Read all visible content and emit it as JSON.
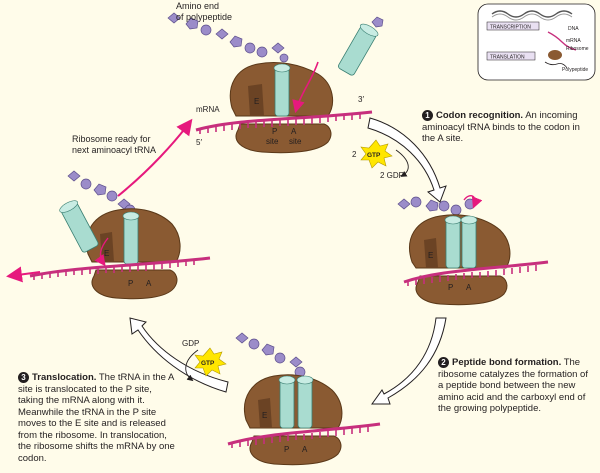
{
  "title_label": "Amino end of polypeptide",
  "title_line1": "Amino end",
  "title_line2": "of polypeptide",
  "mrna_label": "mRNA",
  "five_prime": "5′",
  "three_prime": "3′",
  "e_label": "E",
  "p_label": "P",
  "a_label": "A",
  "site_label": "site",
  "ready_line1": "Ribosome ready for",
  "ready_line2": "next aminoacyl tRNA",
  "gtp": "GTP",
  "gtp_count": "2",
  "gdp_line": "2 GDP",
  "gdp": "GDP",
  "steps": [
    {
      "number": "1",
      "title": "Codon recognition.",
      "body": "An incoming aminoacyl tRNA binds to the codon in the A site."
    },
    {
      "number": "2",
      "title": "Peptide bond formation.",
      "body": "The ribosome catalyzes the formation of a peptide bond between the new amino acid and the carboxyl end of the growing polypeptide."
    },
    {
      "number": "3",
      "title": "Translocation.",
      "body": "The tRNA in the A site is translocated to the P site, taking the mRNA along with it. Meanwhile the tRNA in the P site moves to the E site and is released from the ribosome. In translocation, the ribosome shifts the mRNA by one codon."
    }
  ],
  "inset": {
    "transcription": "TRANSCRIPTION",
    "translation": "TRANSLATION",
    "dna": "DNA",
    "mrna": "mRNA",
    "ribosome": "Ribosome",
    "polypeptide": "Polypeptide"
  },
  "colors": {
    "ribosome": "#8a5a32",
    "ribosome_dark": "#6b4324",
    "trna": "#a9dcd0",
    "mrna": "#c72f7d",
    "amino": "#9b8cc9",
    "arrow_magenta": "#e6197d",
    "gtp": "#ffe600"
  }
}
